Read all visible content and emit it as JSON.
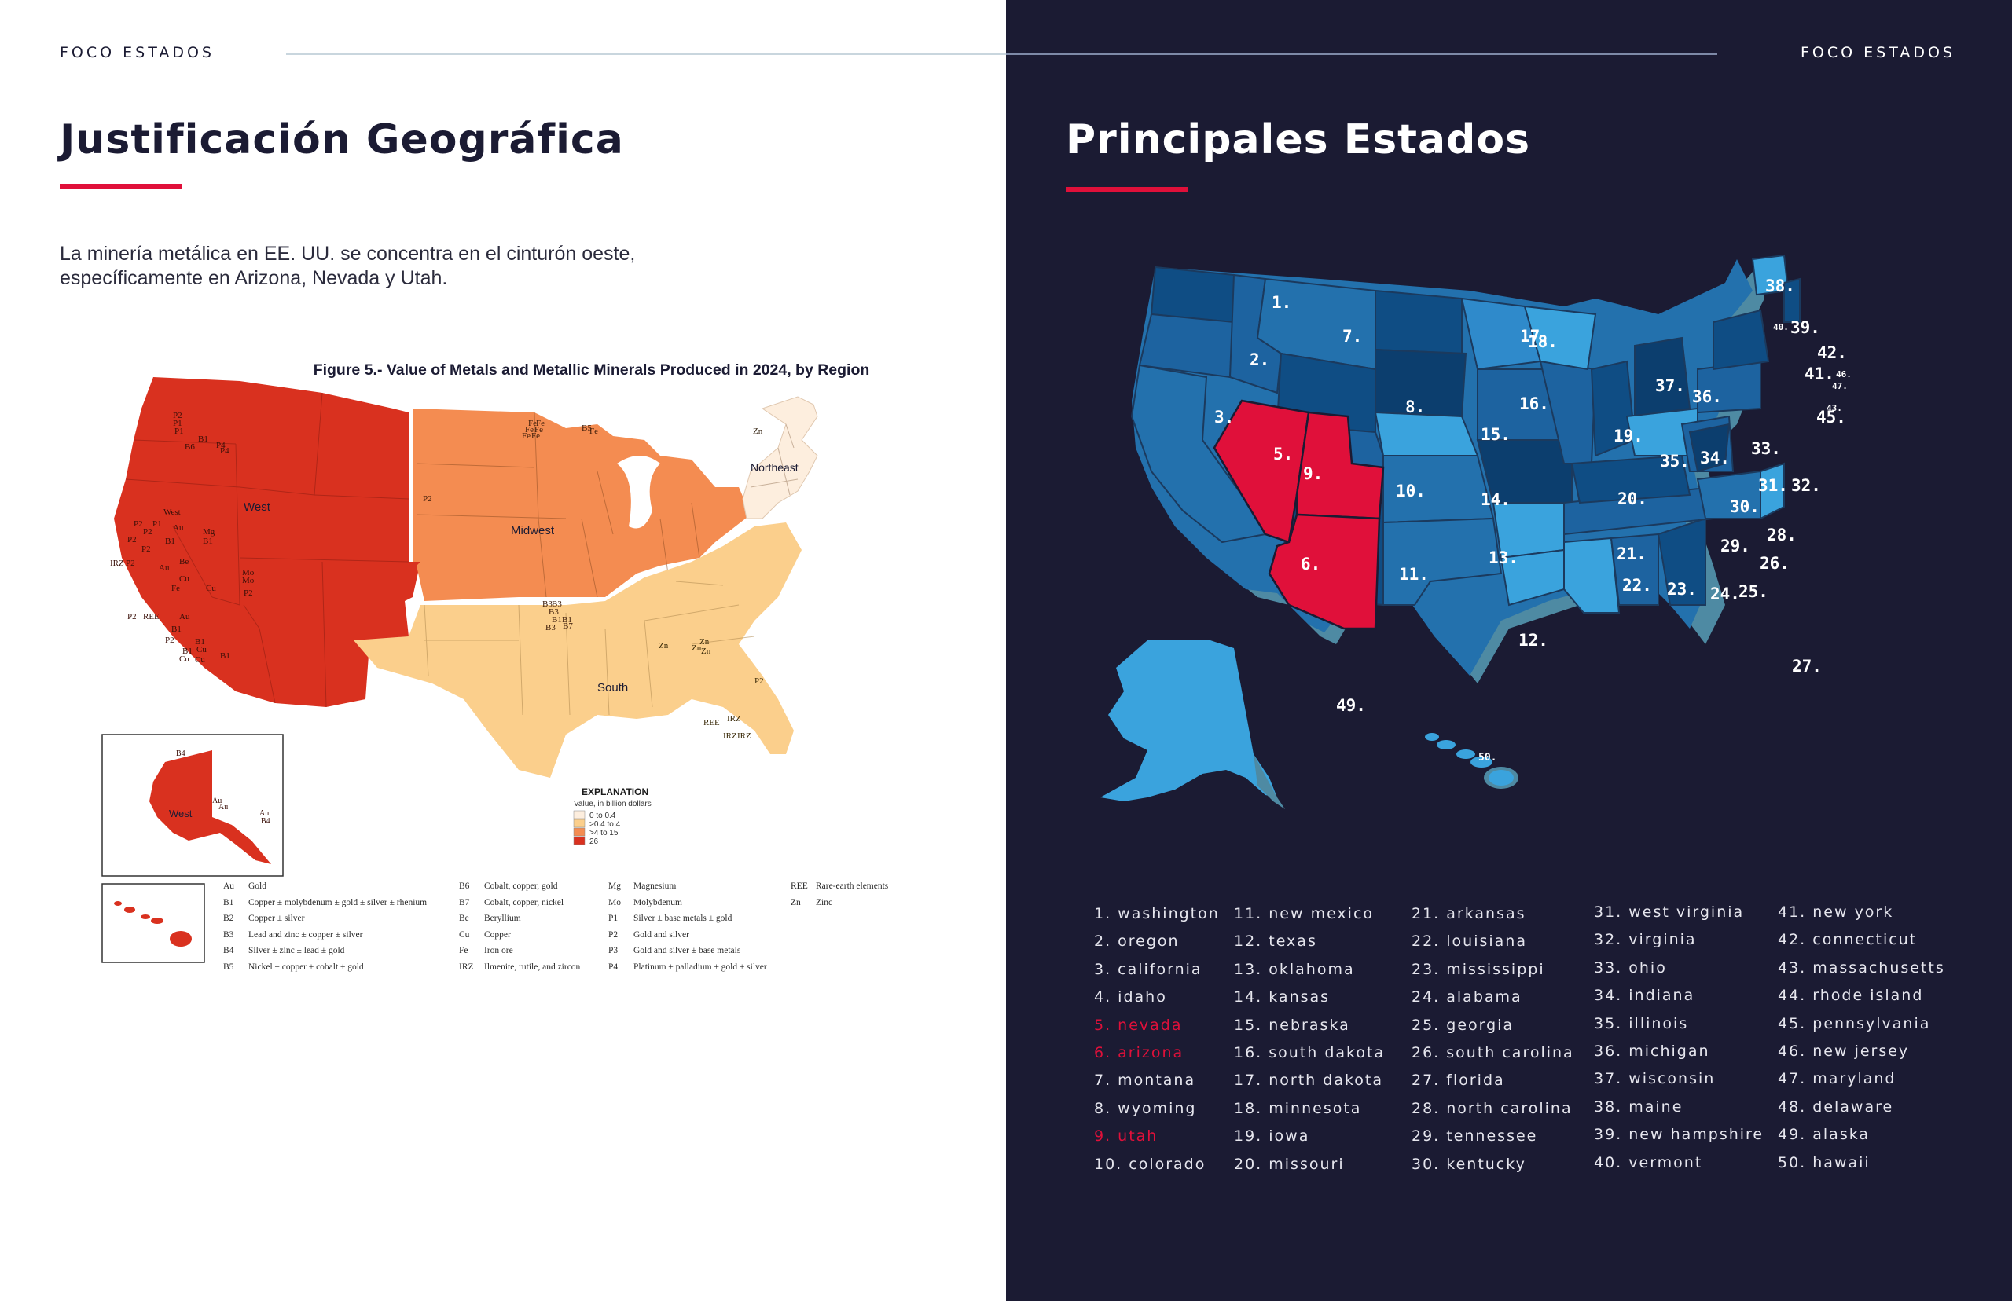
{
  "left": {
    "running_head": "FOCO ESTADOS",
    "title": "Justificación Geográfica",
    "intro": "La minería metálica en EE. UU. se concentra en el cinturón oeste, específicamente en Arizona, Nevada y Utah.",
    "figure": {
      "title": "Figure 5.- Value of Metals and Metallic Minerals Produced in 2024, by Region",
      "regions": {
        "west": "West",
        "midwest": "Midwest",
        "northeast": "Northeast",
        "south": "South",
        "alaska": "West"
      },
      "explanation": {
        "title": "EXPLANATION",
        "subtitle": "Value, in billion dollars",
        "classes": [
          {
            "label": "0 to 0.4",
            "color": "#fdeede"
          },
          {
            "label": ">0.4 to 4",
            "color": "#fbcf8c"
          },
          {
            "label": ">4 to 15",
            "color": "#f48c51"
          },
          {
            "label": "26",
            "color": "#d9311f"
          }
        ]
      },
      "commodity_labels": {
        "west": [
          "P2",
          "P1",
          "P1",
          "B1",
          "B6",
          "P4",
          "P4",
          "West",
          "P2",
          "P2",
          "P1",
          "P2",
          "Au",
          "Mg",
          "B1",
          "B1",
          "P2",
          "IRZ",
          "P2",
          "Be",
          "Mo",
          "Mo",
          "P2",
          "Au",
          "Cu",
          "Fe",
          "Cu",
          "P2",
          "REE",
          "Au",
          "B1",
          "P2",
          "B1",
          "Cu",
          "B1",
          "Cu",
          "Cu",
          "B1"
        ],
        "midwest": [
          "Fe",
          "Fe",
          "Fe",
          "Fe",
          "Fe",
          "Fe",
          "B5",
          "Fe",
          "P2",
          "B3",
          "B3",
          "B3",
          "B1",
          "B1",
          "B7",
          "B3"
        ],
        "northeast": [
          "Zn"
        ],
        "south": [
          "Zn",
          "Zn",
          "Zn",
          "Zn",
          "P2",
          "REE",
          "IRZ",
          "IRZ",
          "IRZ"
        ],
        "alaska": [
          "B4",
          "Au",
          "Au",
          "Au",
          "B4"
        ]
      },
      "legend_items": [
        {
          "code": "Au",
          "label": "Gold"
        },
        {
          "code": "B1",
          "label": "Copper ± molybdenum ± gold ± silver ± rhenium"
        },
        {
          "code": "B2",
          "label": "Copper ± silver"
        },
        {
          "code": "B3",
          "label": "Lead and zinc ± copper ± silver"
        },
        {
          "code": "B4",
          "label": "Silver ± zinc ± lead ± gold"
        },
        {
          "code": "B5",
          "label": "Nickel ± copper ± cobalt ± gold"
        },
        {
          "code": "B6",
          "label": "Cobalt, copper, gold"
        },
        {
          "code": "B7",
          "label": "Cobalt, copper, nickel"
        },
        {
          "code": "Be",
          "label": "Beryllium"
        },
        {
          "code": "Cu",
          "label": "Copper"
        },
        {
          "code": "Fe",
          "label": "Iron ore"
        },
        {
          "code": "IRZ",
          "label": "Ilmenite, rutile, and zircon"
        },
        {
          "code": "Mg",
          "label": "Magnesium"
        },
        {
          "code": "Mo",
          "label": "Molybdenum"
        },
        {
          "code": "P1",
          "label": "Silver ± base metals ± gold"
        },
        {
          "code": "P2",
          "label": "Gold and silver"
        },
        {
          "code": "P3",
          "label": "Gold and silver ± base metals"
        },
        {
          "code": "P4",
          "label": "Platinum ± palladium ± gold ± silver"
        },
        {
          "code": "REE",
          "label": "Rare-earth elements"
        },
        {
          "code": "Zn",
          "label": "Zinc"
        }
      ]
    }
  },
  "right": {
    "running_head": "FOCO ESTADOS",
    "title": "Principales Estados",
    "map_numbers": [
      "1.",
      "2.",
      "3.",
      "5.",
      "6.",
      "7.",
      "8.",
      "9.",
      "10.",
      "11.",
      "12.",
      "13.",
      "14.",
      "15.",
      "16.",
      "17.",
      "18.",
      "19.",
      "20.",
      "21.",
      "22.",
      "23.",
      "24.",
      "25.",
      "26.",
      "27.",
      "28.",
      "29.",
      "30.",
      "31.",
      "32.",
      "33.",
      "34.",
      "35.",
      "36.",
      "37.",
      "38.",
      "39.",
      "40.",
      "41.",
      "42.",
      "43.",
      "45.",
      "46.",
      "47.",
      "49.",
      "50."
    ],
    "states": [
      "1. washington",
      "2. oregon",
      "3. california",
      "4. idaho",
      "5. nevada",
      "6. arizona",
      "7. montana",
      "8. wyoming",
      "9. utah",
      "10. colorado",
      "11. new mexico",
      "12. texas",
      "13. oklahoma",
      "14. kansas",
      "15. nebraska",
      "16. south dakota",
      "17. north dakota",
      "18. minnesota",
      "19. iowa",
      "20. missouri",
      "21. arkansas",
      "22. louisiana",
      "23. mississippi",
      "24. alabama",
      "25. georgia",
      "26. south carolina",
      "27. florida",
      "28. north carolina",
      "29. tennessee",
      "30. kentucky",
      "31. west virginia",
      "32. virginia",
      "33. ohio",
      "34. indiana",
      "35. illinois",
      "36. michigan",
      "37. wisconsin",
      "38. maine",
      "39. new hampshire",
      "40. vermont",
      "41. new york",
      "42. connecticut",
      "43. massachusetts",
      "44. rhode island",
      "45. pennsylvania",
      "46. new jersey",
      "47. maryland",
      "48. delaware",
      "49. alaska",
      "50. hawaii"
    ],
    "highlight_color": "#e0103a"
  }
}
